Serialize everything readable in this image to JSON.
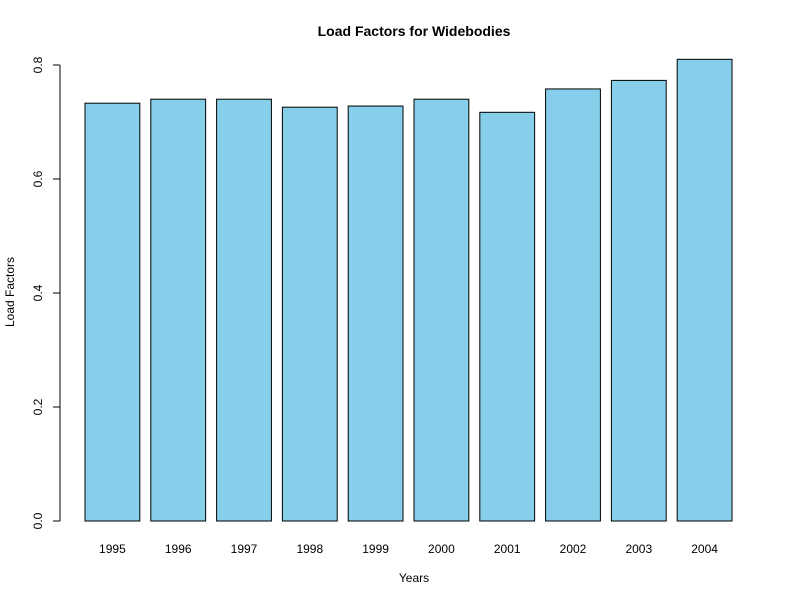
{
  "chart_data": {
    "type": "bar",
    "title": "Load Factors for Widebodies",
    "xlabel": "Years",
    "ylabel": "Load Factors",
    "categories": [
      "1995",
      "1996",
      "1997",
      "1998",
      "1999",
      "2000",
      "2001",
      "2002",
      "2003",
      "2004"
    ],
    "values": [
      0.733,
      0.74,
      0.74,
      0.726,
      0.728,
      0.74,
      0.717,
      0.758,
      0.773,
      0.81
    ],
    "ylim": [
      0,
      0.8
    ],
    "yticks": [
      "0.0",
      "0.2",
      "0.4",
      "0.6",
      "0.8"
    ],
    "grid": false,
    "legend": "none",
    "colors": {
      "bar_fill": "#87CEEB",
      "bar_stroke": "#000000"
    }
  }
}
